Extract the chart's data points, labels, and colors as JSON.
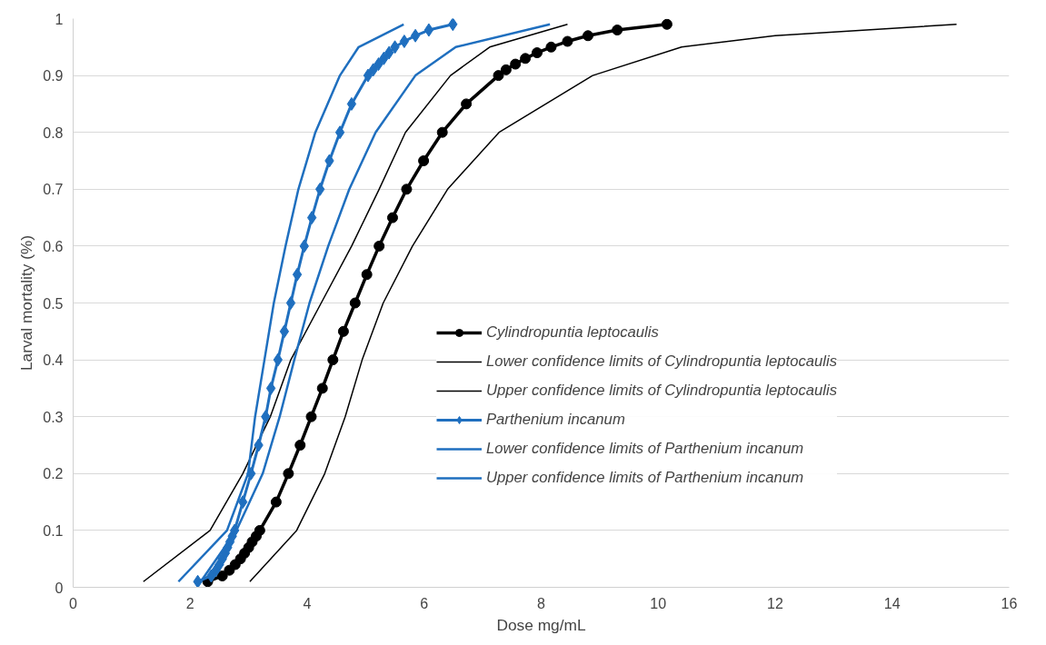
{
  "chart_data": {
    "type": "line",
    "xlabel": "Dose mg/mL",
    "ylabel": "Larval mortality (%)",
    "xlim": [
      0,
      16
    ],
    "ylim": [
      0,
      1
    ],
    "xticks": [
      0,
      2,
      4,
      6,
      8,
      10,
      12,
      14,
      16
    ],
    "yticks": [
      0,
      0.1,
      0.2,
      0.3,
      0.4,
      0.5,
      0.6,
      0.7,
      0.8,
      0.9,
      1
    ],
    "grid": "y",
    "legend": "right",
    "series": [
      {
        "name": "Cylindropuntia leptocaulis",
        "color": "#000000",
        "marker": "circle",
        "x": [
          2.3,
          2.55,
          2.67,
          2.77,
          2.86,
          2.93,
          3.0,
          3.06,
          3.13,
          3.19,
          3.47,
          3.68,
          3.88,
          4.07,
          4.26,
          4.44,
          4.62,
          4.82,
          5.02,
          5.23,
          5.46,
          5.7,
          5.99,
          6.31,
          6.72,
          7.27,
          7.4,
          7.56,
          7.73,
          7.93,
          8.17,
          8.45,
          8.8,
          9.3,
          10.15
        ],
        "values": [
          0.01,
          0.02,
          0.03,
          0.04,
          0.05,
          0.06,
          0.07,
          0.08,
          0.09,
          0.1,
          0.15,
          0.2,
          0.25,
          0.3,
          0.35,
          0.4,
          0.45,
          0.5,
          0.55,
          0.6,
          0.65,
          0.7,
          0.75,
          0.8,
          0.85,
          0.9,
          0.91,
          0.92,
          0.93,
          0.94,
          0.95,
          0.96,
          0.97,
          0.98,
          0.99
        ]
      },
      {
        "name": "Lower confidence limits of Cylindropuntia leptocaulis",
        "color": "#000000",
        "marker": "none",
        "x": [
          1.2,
          2.34,
          2.9,
          3.37,
          3.72,
          4.24,
          4.76,
          5.23,
          5.68,
          6.45,
          7.12,
          8.45
        ],
        "values": [
          0.01,
          0.1,
          0.2,
          0.3,
          0.4,
          0.5,
          0.6,
          0.7,
          0.8,
          0.9,
          0.95,
          0.99
        ]
      },
      {
        "name": "Upper confidence limits of Cylindropuntia leptocaulis",
        "color": "#000000",
        "marker": "none",
        "x": [
          3.02,
          3.82,
          4.3,
          4.65,
          4.94,
          5.3,
          5.8,
          6.4,
          7.28,
          8.88,
          10.4,
          12.0,
          15.1
        ],
        "values": [
          0.01,
          0.1,
          0.2,
          0.3,
          0.4,
          0.5,
          0.6,
          0.7,
          0.8,
          0.9,
          0.95,
          0.97,
          0.99
        ]
      },
      {
        "name": "Parthenium incanum",
        "color": "#1f6fbf",
        "marker": "diamond",
        "x": [
          2.13,
          2.36,
          2.44,
          2.5,
          2.55,
          2.6,
          2.64,
          2.68,
          2.72,
          2.76,
          2.9,
          3.04,
          3.17,
          3.29,
          3.38,
          3.5,
          3.61,
          3.72,
          3.83,
          3.95,
          4.08,
          4.22,
          4.38,
          4.56,
          4.76,
          5.04,
          5.13,
          5.22,
          5.31,
          5.4,
          5.5,
          5.66,
          5.85,
          6.08,
          6.49
        ],
        "values": [
          0.01,
          0.02,
          0.03,
          0.04,
          0.05,
          0.06,
          0.07,
          0.08,
          0.09,
          0.1,
          0.15,
          0.2,
          0.25,
          0.3,
          0.35,
          0.4,
          0.45,
          0.5,
          0.55,
          0.6,
          0.65,
          0.7,
          0.75,
          0.8,
          0.85,
          0.9,
          0.91,
          0.92,
          0.93,
          0.94,
          0.95,
          0.96,
          0.97,
          0.98,
          0.99
        ]
      },
      {
        "name": "Lower confidence limits of Parthenium incanum",
        "color": "#1f6fbf",
        "marker": "none",
        "x": [
          1.8,
          2.63,
          2.99,
          3.11,
          3.27,
          3.43,
          3.63,
          3.85,
          4.14,
          4.56,
          4.88,
          5.65
        ],
        "values": [
          0.01,
          0.1,
          0.2,
          0.3,
          0.4,
          0.5,
          0.6,
          0.7,
          0.8,
          0.9,
          0.95,
          0.99
        ]
      },
      {
        "name": "Upper confidence limits of Parthenium incanum",
        "color": "#1f6fbf",
        "marker": "none",
        "x": [
          2.18,
          2.79,
          3.24,
          3.53,
          3.78,
          4.04,
          4.36,
          4.72,
          5.17,
          5.85,
          6.54,
          8.15
        ],
        "values": [
          0.01,
          0.1,
          0.2,
          0.3,
          0.4,
          0.5,
          0.6,
          0.7,
          0.8,
          0.9,
          0.95,
          0.99
        ]
      }
    ]
  }
}
